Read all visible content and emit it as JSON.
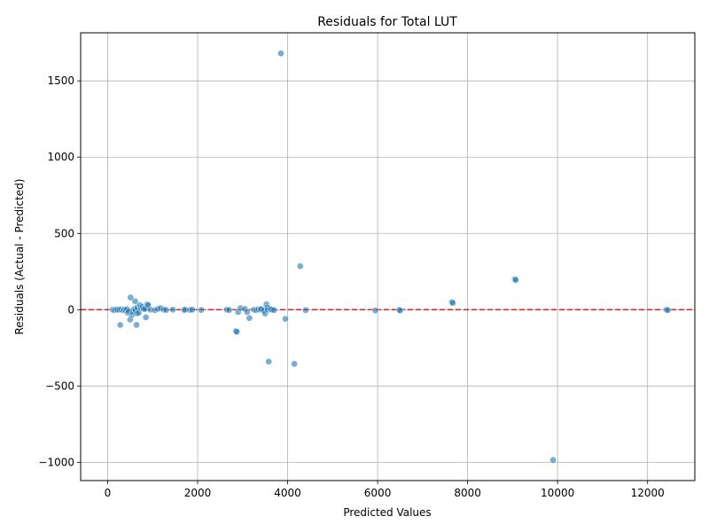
{
  "chart_data": {
    "type": "scatter",
    "title": "Residuals for Total LUT",
    "xlabel": "Predicted Values",
    "ylabel": "Residuals (Actual - Predicted)",
    "xlim": [
      -600,
      13050
    ],
    "ylim": [
      -1120,
      1815
    ],
    "xticks": [
      0,
      2000,
      4000,
      6000,
      8000,
      10000,
      12000
    ],
    "yticks": [
      -1000,
      -500,
      0,
      500,
      1000,
      1500
    ],
    "grid": true,
    "reference_line": {
      "y": 0,
      "style": "dashed",
      "color": "#d62728"
    },
    "marker_color": "#1f77b4",
    "points": [
      [
        110,
        0
      ],
      [
        150,
        -3
      ],
      [
        190,
        2
      ],
      [
        220,
        -1
      ],
      [
        260,
        0
      ],
      [
        280,
        -100
      ],
      [
        300,
        2
      ],
      [
        340,
        -4
      ],
      [
        370,
        0
      ],
      [
        400,
        -5
      ],
      [
        430,
        3
      ],
      [
        450,
        -20
      ],
      [
        470,
        -10
      ],
      [
        500,
        -65
      ],
      [
        510,
        80
      ],
      [
        540,
        -35
      ],
      [
        560,
        -15
      ],
      [
        590,
        5
      ],
      [
        610,
        55
      ],
      [
        620,
        -5
      ],
      [
        640,
        -100
      ],
      [
        650,
        -25
      ],
      [
        660,
        15
      ],
      [
        690,
        -20
      ],
      [
        720,
        30
      ],
      [
        740,
        10
      ],
      [
        770,
        20
      ],
      [
        800,
        5
      ],
      [
        830,
        5
      ],
      [
        850,
        -50
      ],
      [
        880,
        35
      ],
      [
        900,
        30
      ],
      [
        950,
        0
      ],
      [
        1050,
        -3
      ],
      [
        1120,
        5
      ],
      [
        1180,
        10
      ],
      [
        1250,
        0
      ],
      [
        1300,
        -2
      ],
      [
        1450,
        0
      ],
      [
        1700,
        -3
      ],
      [
        1720,
        0
      ],
      [
        1830,
        -2
      ],
      [
        1880,
        0
      ],
      [
        2080,
        -2
      ],
      [
        2650,
        0
      ],
      [
        2700,
        -2
      ],
      [
        2850,
        -140
      ],
      [
        2870,
        -145
      ],
      [
        2900,
        -15
      ],
      [
        2950,
        10
      ],
      [
        3050,
        5
      ],
      [
        3100,
        -15
      ],
      [
        3150,
        -55
      ],
      [
        3250,
        0
      ],
      [
        3300,
        -3
      ],
      [
        3350,
        2
      ],
      [
        3400,
        0
      ],
      [
        3420,
        5
      ],
      [
        3470,
        -5
      ],
      [
        3500,
        -25
      ],
      [
        3530,
        35
      ],
      [
        3550,
        15
      ],
      [
        3560,
        0
      ],
      [
        3580,
        -340
      ],
      [
        3620,
        5
      ],
      [
        3650,
        0
      ],
      [
        3700,
        -3
      ],
      [
        3850,
        1680
      ],
      [
        3950,
        -60
      ],
      [
        4150,
        -355
      ],
      [
        4280,
        285
      ],
      [
        4400,
        -3
      ],
      [
        5950,
        -5
      ],
      [
        6480,
        0
      ],
      [
        6500,
        -5
      ],
      [
        7650,
        50
      ],
      [
        7670,
        45
      ],
      [
        9050,
        200
      ],
      [
        9070,
        195
      ],
      [
        9900,
        -985
      ],
      [
        12420,
        0
      ],
      [
        12450,
        -3
      ]
    ]
  }
}
